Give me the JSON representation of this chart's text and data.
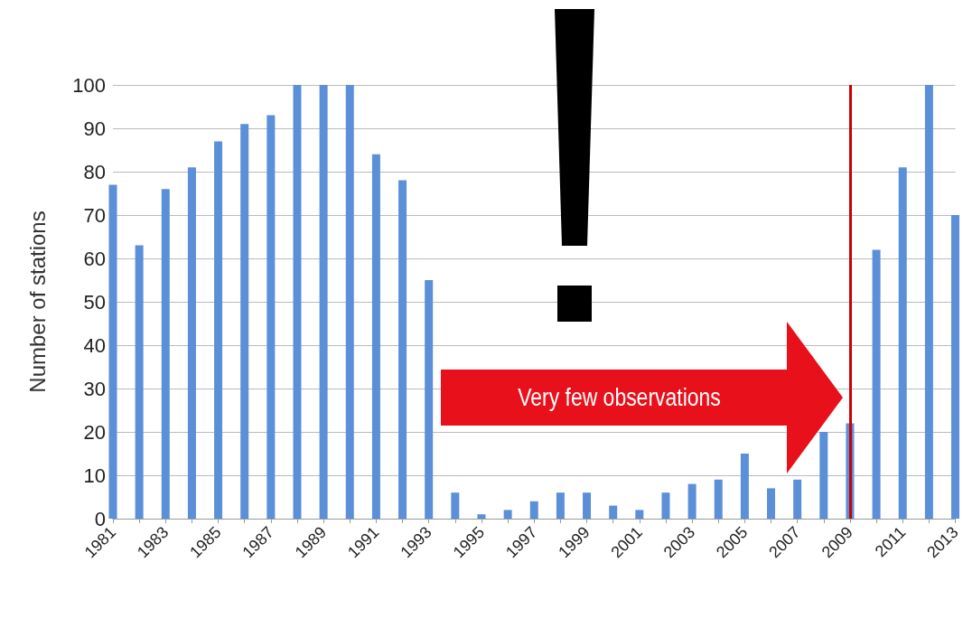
{
  "chart_data": {
    "type": "bar",
    "ylabel": "Number of stations",
    "categories": [
      "1981",
      null,
      "1983",
      null,
      "1985",
      null,
      "1987",
      null,
      "1989",
      null,
      "1991",
      null,
      "1993",
      null,
      "1995",
      null,
      "1997",
      null,
      "1999",
      null,
      "2001",
      null,
      "2003",
      null,
      "2005",
      null,
      "2007",
      null,
      "2009",
      null,
      "2011",
      null,
      "2013"
    ],
    "values": [
      77,
      63,
      76,
      81,
      87,
      91,
      93,
      100,
      100,
      100,
      84,
      78,
      55,
      6,
      1,
      2,
      4,
      6,
      6,
      3,
      2,
      6,
      8,
      9,
      15,
      7,
      9,
      20,
      22,
      62,
      81,
      100,
      70
    ],
    "color": "#5b8fd8",
    "ylim": [
      0,
      100
    ],
    "yticks": [
      0,
      10,
      20,
      30,
      40,
      50,
      60,
      70,
      80,
      90,
      100
    ],
    "grid": "y",
    "ref_lines": [
      {
        "axis": "x",
        "value": "2009",
        "color": "#cc0000"
      }
    ],
    "annotations": [
      "Very few observations"
    ]
  }
}
